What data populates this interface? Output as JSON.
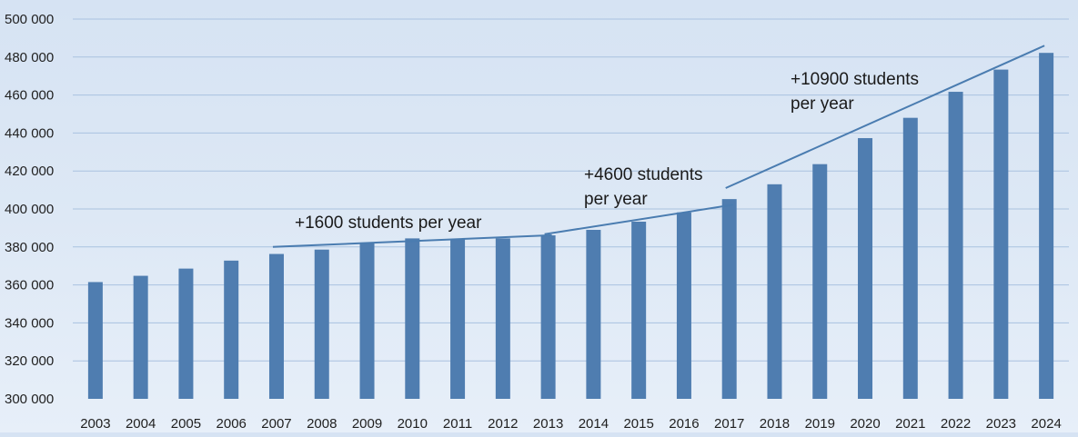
{
  "chart_data": {
    "type": "bar",
    "title": "",
    "xlabel": "",
    "ylabel": "",
    "ylim": [
      300000,
      500000
    ],
    "yticks": [
      300000,
      320000,
      340000,
      360000,
      380000,
      400000,
      420000,
      440000,
      460000,
      480000,
      500000
    ],
    "ytick_labels": [
      "300 000",
      "320 000",
      "340 000",
      "360 000",
      "380 000",
      "400 000",
      "420 000",
      "440 000",
      "460 000",
      "480 000",
      "500 000"
    ],
    "categories": [
      "2003",
      "2004",
      "2005",
      "2006",
      "2007",
      "2008",
      "2009",
      "2010",
      "2011",
      "2012",
      "2013",
      "2014",
      "2015",
      "2016",
      "2017",
      "2018",
      "2019",
      "2020",
      "2021",
      "2022",
      "2023",
      "2024"
    ],
    "values": [
      361500,
      364800,
      368600,
      372800,
      376300,
      378600,
      382300,
      384500,
      384200,
      384500,
      386100,
      389000,
      393300,
      398200,
      405200,
      413000,
      423600,
      437300,
      448000,
      461700,
      473400,
      482200
    ],
    "bar_color": "#4f7db0",
    "grid": true,
    "grid_color": "#a9c2e0",
    "trend_color": "#4a7cb0",
    "trends": [
      {
        "label_lines": [
          "+1600 students per year"
        ],
        "from": {
          "x": "2007",
          "y": 380000
        },
        "to": {
          "x": "2013",
          "y": 386200
        }
      },
      {
        "label_lines": [
          "+4600 students",
          "per year"
        ],
        "from": {
          "x": "2013",
          "y": 386700
        },
        "to": {
          "x": "2017",
          "y": 402200
        }
      },
      {
        "label_lines": [
          "+10900 students",
          "per year"
        ],
        "from": {
          "x": "2017",
          "y": 411000
        },
        "to": {
          "x": "2024",
          "y": 486000
        }
      }
    ]
  }
}
